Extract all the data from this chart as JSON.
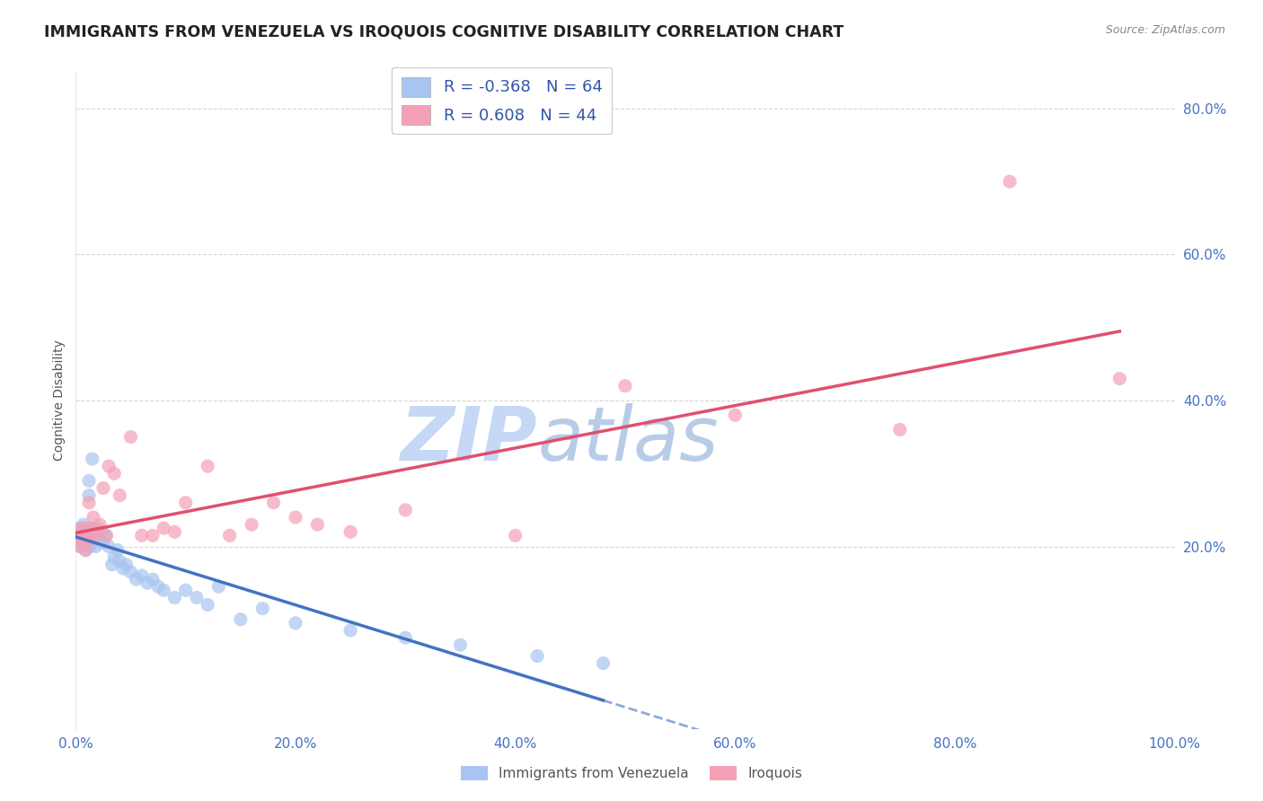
{
  "title": "IMMIGRANTS FROM VENEZUELA VS IROQUOIS COGNITIVE DISABILITY CORRELATION CHART",
  "source": "Source: ZipAtlas.com",
  "ylabel": "Cognitive Disability",
  "xlabel": "",
  "background_color": "#ffffff",
  "watermark_text": "ZIP",
  "watermark_text2": "atlas",
  "series": [
    {
      "name": "Immigrants from Venezuela",
      "R": -0.368,
      "N": 64,
      "color": "#a8c4f0",
      "line_color": "#4472c4",
      "x": [
        0.001,
        0.002,
        0.002,
        0.003,
        0.003,
        0.004,
        0.004,
        0.005,
        0.005,
        0.006,
        0.006,
        0.007,
        0.007,
        0.008,
        0.008,
        0.009,
        0.009,
        0.01,
        0.01,
        0.011,
        0.011,
        0.012,
        0.012,
        0.013,
        0.013,
        0.014,
        0.015,
        0.015,
        0.016,
        0.017,
        0.018,
        0.019,
        0.02,
        0.022,
        0.024,
        0.025,
        0.027,
        0.03,
        0.033,
        0.035,
        0.038,
        0.04,
        0.043,
        0.046,
        0.05,
        0.055,
        0.06,
        0.065,
        0.07,
        0.075,
        0.08,
        0.09,
        0.1,
        0.11,
        0.12,
        0.13,
        0.15,
        0.17,
        0.2,
        0.25,
        0.3,
        0.35,
        0.42,
        0.48
      ],
      "y": [
        0.215,
        0.21,
        0.22,
        0.205,
        0.225,
        0.215,
        0.2,
        0.22,
        0.21,
        0.215,
        0.225,
        0.23,
        0.205,
        0.215,
        0.22,
        0.195,
        0.21,
        0.22,
        0.215,
        0.225,
        0.21,
        0.27,
        0.29,
        0.2,
        0.215,
        0.205,
        0.32,
        0.215,
        0.225,
        0.215,
        0.2,
        0.21,
        0.215,
        0.21,
        0.22,
        0.205,
        0.215,
        0.2,
        0.175,
        0.185,
        0.195,
        0.18,
        0.17,
        0.175,
        0.165,
        0.155,
        0.16,
        0.15,
        0.155,
        0.145,
        0.14,
        0.13,
        0.14,
        0.13,
        0.12,
        0.145,
        0.1,
        0.115,
        0.095,
        0.085,
        0.075,
        0.065,
        0.05,
        0.04
      ]
    },
    {
      "name": "Iroquois",
      "R": 0.608,
      "N": 44,
      "color": "#f4a0b5",
      "line_color": "#e05070",
      "x": [
        0.001,
        0.002,
        0.003,
        0.004,
        0.005,
        0.006,
        0.007,
        0.008,
        0.009,
        0.01,
        0.011,
        0.012,
        0.013,
        0.014,
        0.015,
        0.016,
        0.018,
        0.02,
        0.022,
        0.025,
        0.028,
        0.03,
        0.035,
        0.04,
        0.05,
        0.06,
        0.07,
        0.08,
        0.09,
        0.1,
        0.12,
        0.14,
        0.16,
        0.18,
        0.2,
        0.22,
        0.25,
        0.3,
        0.4,
        0.5,
        0.6,
        0.75,
        0.85,
        0.95
      ],
      "y": [
        0.21,
        0.215,
        0.22,
        0.2,
        0.215,
        0.225,
        0.21,
        0.215,
        0.195,
        0.22,
        0.225,
        0.26,
        0.215,
        0.21,
        0.22,
        0.24,
        0.215,
        0.225,
        0.23,
        0.28,
        0.215,
        0.31,
        0.3,
        0.27,
        0.35,
        0.215,
        0.215,
        0.225,
        0.22,
        0.26,
        0.31,
        0.215,
        0.23,
        0.26,
        0.24,
        0.23,
        0.22,
        0.25,
        0.215,
        0.42,
        0.38,
        0.36,
        0.7,
        0.43
      ]
    }
  ],
  "xlim": [
    0.0,
    1.0
  ],
  "ylim": [
    -0.05,
    0.85
  ],
  "xticks": [
    0.0,
    0.2,
    0.4,
    0.6,
    0.8,
    1.0
  ],
  "xtick_labels": [
    "0.0%",
    "20.0%",
    "40.0%",
    "60.0%",
    "80.0%",
    "100.0%"
  ],
  "yticks": [
    0.2,
    0.4,
    0.6,
    0.8
  ],
  "ytick_labels": [
    "20.0%",
    "40.0%",
    "60.0%",
    "80.0%"
  ],
  "grid_color": "#cccccc",
  "tick_color": "#4472c4",
  "title_fontsize": 12.5,
  "axis_label_fontsize": 10,
  "tick_fontsize": 11,
  "legend_fontsize": 13,
  "watermark_color_zip": "#c8d8f0",
  "watermark_color_atlas": "#b0c8e8",
  "watermark_fontsize": 60
}
